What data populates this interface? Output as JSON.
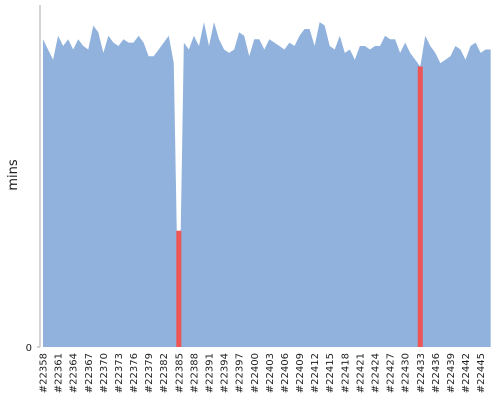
{
  "chart_data": {
    "type": "area",
    "y_label": "mins",
    "color": "#90b2dc",
    "ylim": [
      0,
      100
    ],
    "yticks": [
      0
    ],
    "categories": [
      "#22358",
      null,
      null,
      "#22361",
      null,
      null,
      "#22364",
      null,
      null,
      "#22367",
      null,
      null,
      "#22370",
      null,
      null,
      "#22373",
      null,
      null,
      "#22376",
      null,
      null,
      "#22379",
      null,
      null,
      "#22382",
      null,
      null,
      "#22385",
      null,
      null,
      "#22388",
      null,
      null,
      "#22391",
      null,
      null,
      "#22394",
      null,
      null,
      "#22397",
      null,
      null,
      "#22400",
      null,
      null,
      "#22403",
      null,
      null,
      "#22406",
      null,
      null,
      "#22409",
      null,
      null,
      "#22412",
      null,
      null,
      "#22415",
      null,
      null,
      "#22418",
      null,
      null,
      "#22421",
      null,
      null,
      "#22424",
      null,
      null,
      "#22427",
      null,
      null,
      "#22430",
      null,
      null,
      "#22433",
      null,
      null,
      "#22436",
      null,
      null,
      "#22439",
      null,
      null,
      "#22442",
      null,
      null,
      "#22445",
      null,
      null
    ],
    "values": [
      90,
      87,
      84,
      91,
      88,
      90,
      87,
      90,
      88,
      87,
      94,
      92,
      86,
      91,
      89,
      88,
      90,
      89,
      89,
      91,
      89,
      85,
      85,
      87,
      89,
      91,
      83,
      0,
      89,
      87,
      91,
      88,
      95,
      88,
      95,
      90,
      87,
      86,
      87,
      92,
      91,
      85,
      90,
      90,
      87,
      90,
      89,
      88,
      87,
      89,
      88,
      91,
      93,
      93,
      88,
      95,
      94,
      88,
      87,
      91,
      86,
      87,
      84,
      88,
      88,
      87,
      88,
      88,
      91,
      90,
      90,
      86,
      89,
      86,
      84,
      82,
      91,
      88,
      86,
      83,
      84,
      85,
      88,
      87,
      84,
      88,
      89,
      86,
      87,
      87
    ],
    "failed": {
      "color": "#ee5555",
      "values": [
        null,
        null,
        null,
        null,
        null,
        null,
        null,
        null,
        null,
        null,
        null,
        null,
        null,
        null,
        null,
        null,
        null,
        null,
        null,
        null,
        null,
        null,
        null,
        null,
        null,
        null,
        null,
        34,
        null,
        null,
        null,
        null,
        null,
        null,
        null,
        null,
        null,
        null,
        null,
        null,
        null,
        null,
        null,
        null,
        null,
        null,
        null,
        null,
        null,
        null,
        null,
        null,
        null,
        null,
        null,
        null,
        null,
        null,
        null,
        null,
        null,
        null,
        null,
        null,
        null,
        null,
        null,
        null,
        null,
        null,
        null,
        null,
        null,
        null,
        null,
        82,
        null,
        null,
        null,
        null,
        null,
        null,
        null,
        null,
        null,
        null,
        null,
        null,
        null,
        null
      ]
    }
  }
}
